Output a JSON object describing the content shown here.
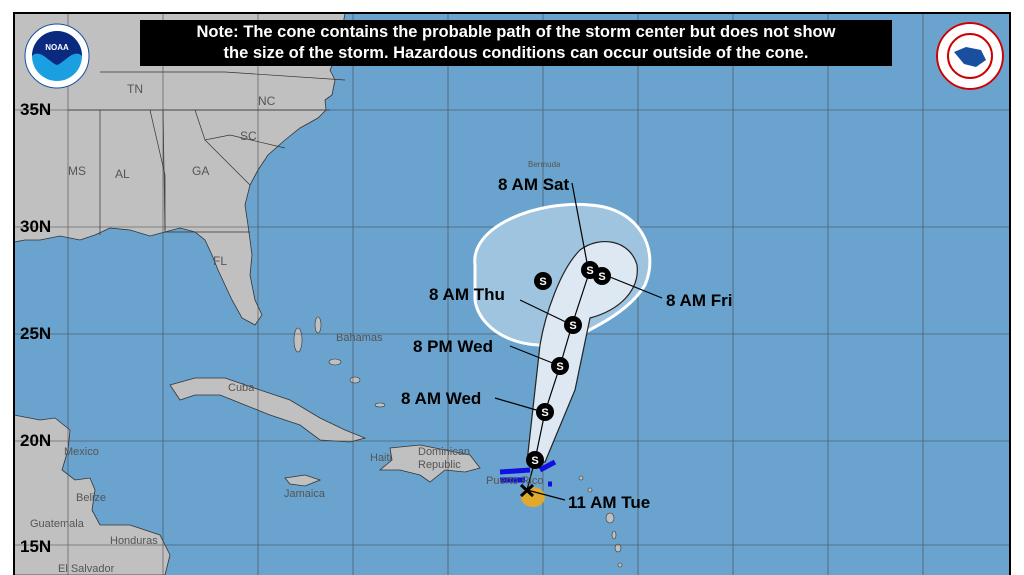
{
  "note": {
    "line1": "Note: The cone contains the probable path of the storm center but does not show",
    "line2": "the size of the storm. Hazardous conditions can occur outside of the cone."
  },
  "logos": {
    "noaa": "NOAA",
    "nws": "NATIONAL WEATHER SERVICE"
  },
  "latitudes": [
    "35N",
    "30N",
    "25N",
    "20N",
    "15N"
  ],
  "states": [
    "TN",
    "NC",
    "SC",
    "MS",
    "AL",
    "GA",
    "FL"
  ],
  "places": [
    "Bahamas",
    "Cuba",
    "Haiti",
    "Dominican Republic",
    "Puerto Rico",
    "Jamaica",
    "Mexico",
    "Belize",
    "Guatemala",
    "Honduras",
    "El Salvador",
    "Bermuda"
  ],
  "forecast_points": [
    {
      "label": "11 AM Tue",
      "type": "current-position-x"
    },
    {
      "label": "8 AM Wed",
      "type": "S"
    },
    {
      "label": "8 PM Wed",
      "type": "S"
    },
    {
      "label": "8 AM Thu",
      "type": "S"
    },
    {
      "label": "8 AM Fri",
      "type": "S"
    },
    {
      "label": "8 AM Sat",
      "type": "S"
    }
  ],
  "storm_symbol": "S",
  "colors": {
    "ocean": "#6aa3cd",
    "land": "#c0c0c0",
    "cone": "#dde8f2",
    "warning": "#1010e0",
    "current_area": "#e0a82c"
  }
}
